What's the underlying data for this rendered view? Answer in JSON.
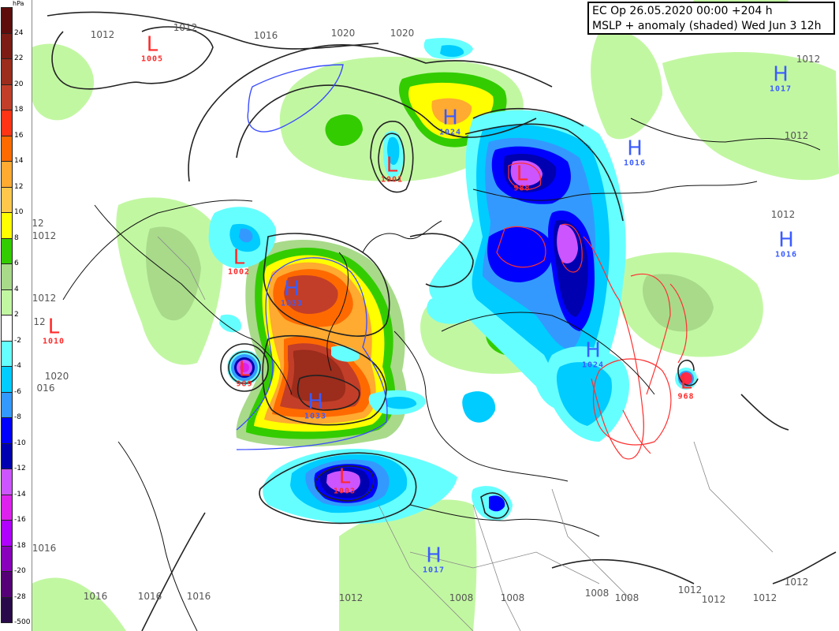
{
  "title": {
    "line1": "EC Op 26.05.2020 00:00 +204 h",
    "line2": "MSLP + anomaly (shaded) Wed Jun 3 12h"
  },
  "legend": {
    "unit": "hPa",
    "bins": [
      {
        "label": "24",
        "color": "#5e0c0c"
      },
      {
        "label": "22",
        "color": "#7c1c14"
      },
      {
        "label": "20",
        "color": "#9c2c1c"
      },
      {
        "label": "18",
        "color": "#c23e28"
      },
      {
        "label": "16",
        "color": "#ff3414"
      },
      {
        "label": "14",
        "color": "#ff6a00"
      },
      {
        "label": "12",
        "color": "#ffaa30"
      },
      {
        "label": "10",
        "color": "#ffc84c"
      },
      {
        "label": "8",
        "color": "#ffff00"
      },
      {
        "label": "6",
        "color": "#33cc00"
      },
      {
        "label": "4",
        "color": "#a8da8a"
      },
      {
        "label": "2",
        "color": "#c2f7a2"
      },
      {
        "label": "-2",
        "color": "#ffffff"
      },
      {
        "label": "-4",
        "color": "#66ffff"
      },
      {
        "label": "-6",
        "color": "#00ccff"
      },
      {
        "label": "-8",
        "color": "#3399ff"
      },
      {
        "label": "-10",
        "color": "#0000ff"
      },
      {
        "label": "-12",
        "color": "#0000b0"
      },
      {
        "label": "-14",
        "color": "#cc55ff"
      },
      {
        "label": "-16",
        "color": "#dd22ee"
      },
      {
        "label": "-18",
        "color": "#b000ff"
      },
      {
        "label": "-20",
        "color": "#8800bb"
      },
      {
        "label": "-28",
        "color": "#550077"
      },
      {
        "label": "-500",
        "color": "#2a0a4a"
      }
    ]
  },
  "colors": {
    "low": "#ff2a2a",
    "high": "#3a5cff",
    "isobar": "#222222",
    "isobar_label": "#555555"
  },
  "pressure_centers": [
    {
      "type": "L",
      "value": "1005"
    },
    {
      "type": "H",
      "value": "1024"
    },
    {
      "type": "L",
      "value": "1001"
    },
    {
      "type": "L",
      "value": "988"
    },
    {
      "type": "H",
      "value": "1016"
    },
    {
      "type": "H",
      "value": "1017"
    },
    {
      "type": "H",
      "value": "1016"
    },
    {
      "type": "L",
      "value": "1002"
    },
    {
      "type": "H",
      "value": "1033"
    },
    {
      "type": "L",
      "value": "1010"
    },
    {
      "type": "L",
      "value": "989"
    },
    {
      "type": "H",
      "value": "1033"
    },
    {
      "type": "L",
      "value": "1003"
    },
    {
      "type": "H",
      "value": "1024"
    },
    {
      "type": "L",
      "value": "968"
    },
    {
      "type": "H",
      "value": "1017"
    }
  ],
  "isobar_labels": [
    "1012",
    "1012",
    "1016",
    "1020",
    "1020",
    "1012",
    "1012",
    "1012",
    "12",
    "1012",
    "1012",
    "12",
    "1020",
    "016",
    "1016",
    "1016",
    "1016",
    "1016",
    "1012",
    "1008",
    "1008",
    "1008",
    "1008",
    "1012",
    "1012",
    "1012",
    "1012"
  ]
}
